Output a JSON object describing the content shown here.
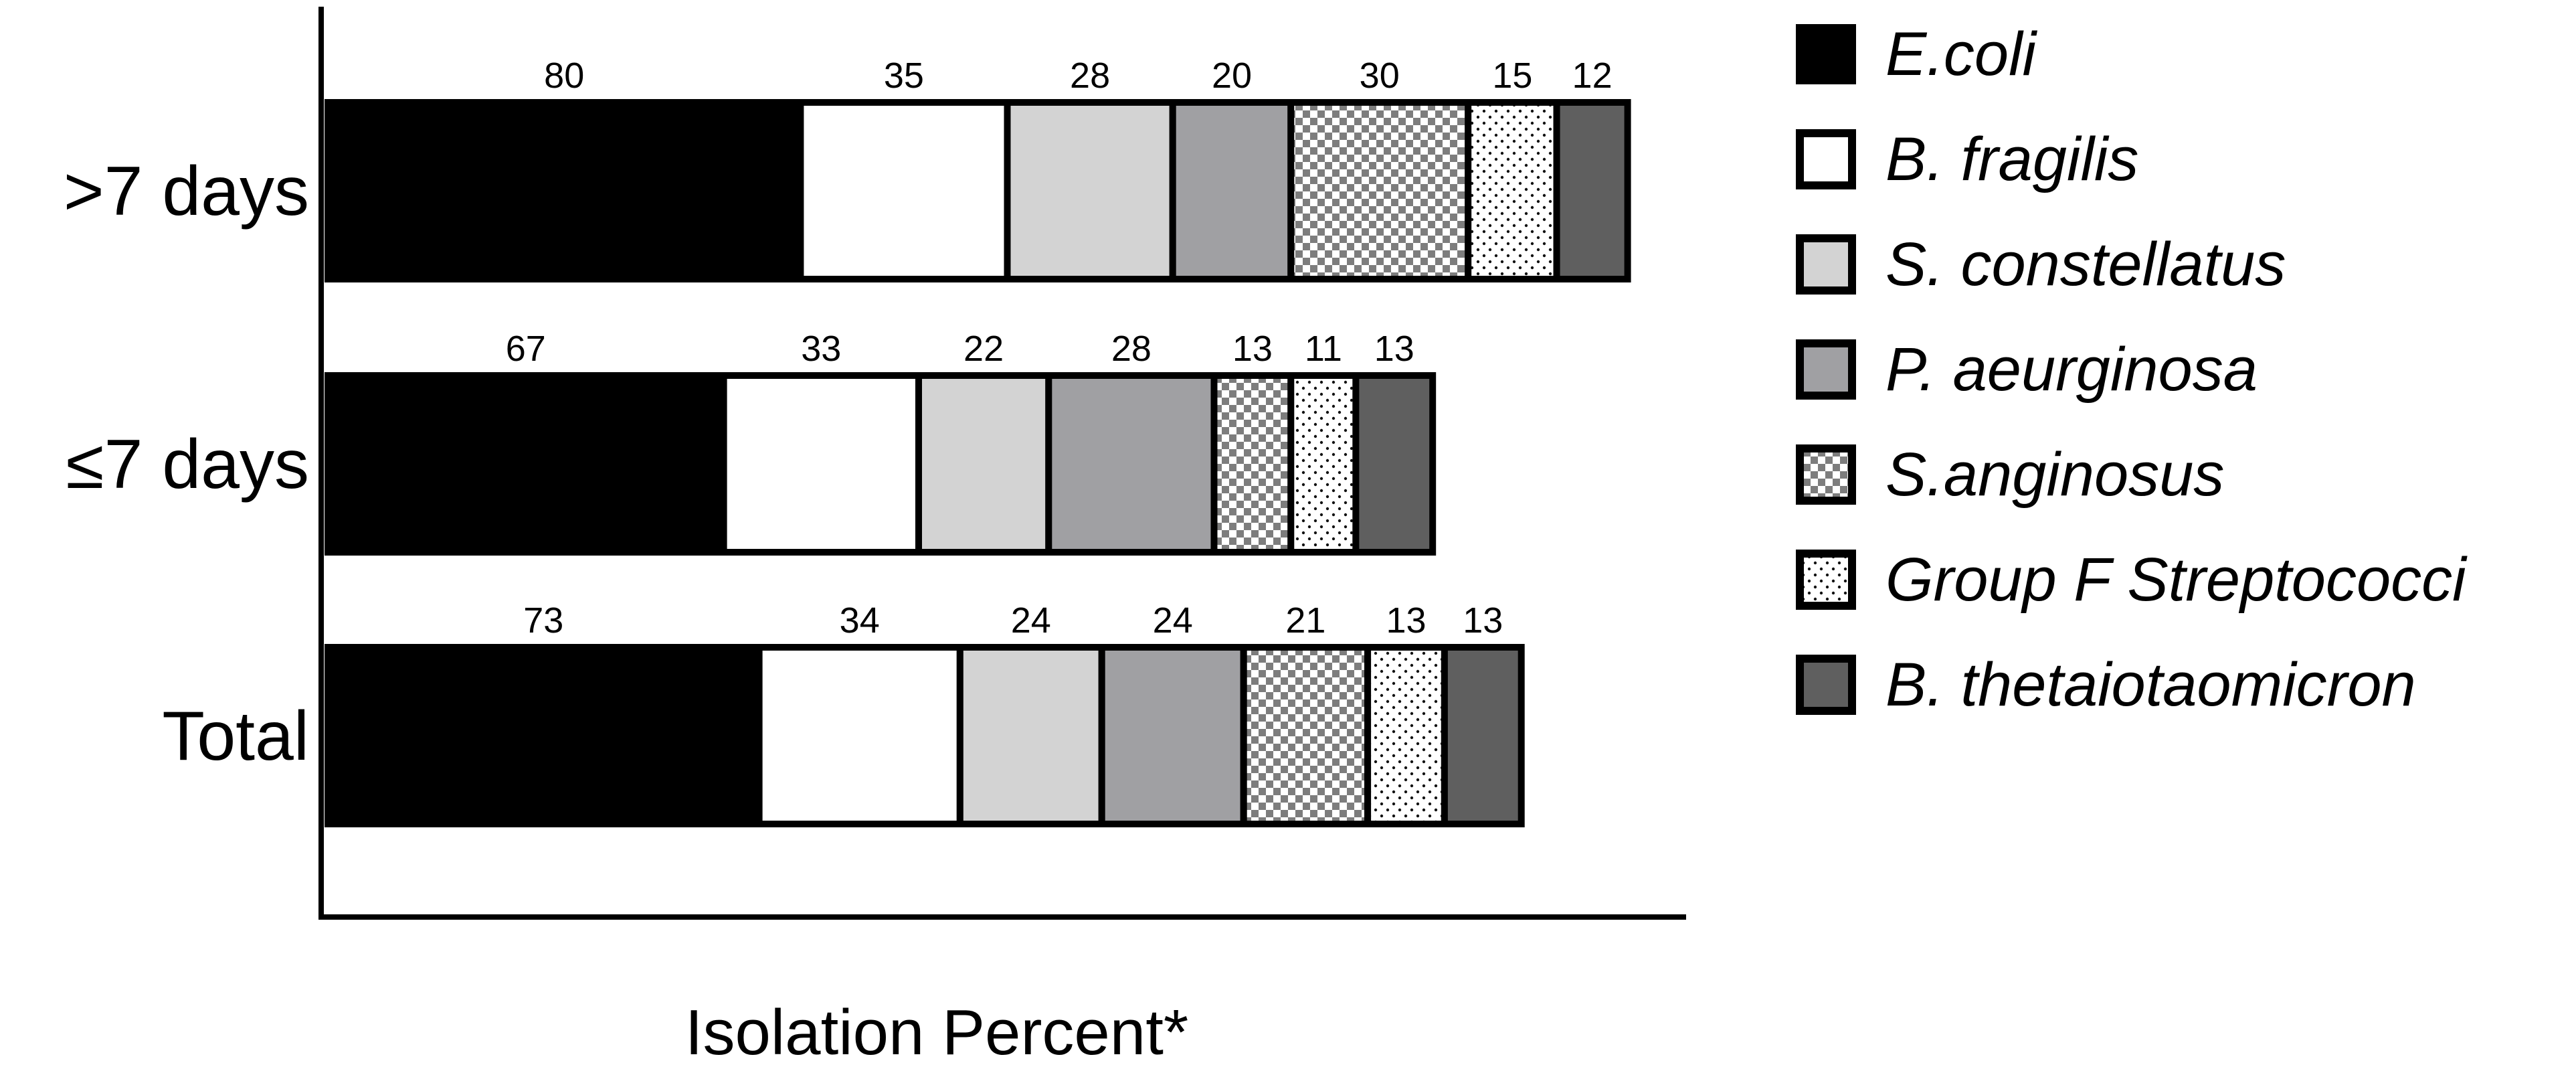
{
  "chart_data": {
    "type": "bar",
    "orientation": "horizontal",
    "stacked": true,
    "title": "",
    "xlabel": "Isolation Percent*",
    "ylabel": "",
    "categories": [
      ">7 days",
      "≤7 days",
      "Total"
    ],
    "series": [
      {
        "name": "E.coli",
        "values": [
          80,
          67,
          73
        ],
        "fill": "#000000",
        "pattern": "solid"
      },
      {
        "name": "B. fragilis",
        "values": [
          35,
          33,
          34
        ],
        "fill": "#ffffff",
        "pattern": "solid"
      },
      {
        "name": "S. constellatus",
        "values": [
          28,
          22,
          24
        ],
        "fill": "#d3d3d3",
        "pattern": "solid"
      },
      {
        "name": "P. aeurginosa",
        "values": [
          20,
          28,
          24
        ],
        "fill": "#a0a0a3",
        "pattern": "solid"
      },
      {
        "name": "S.anginosus",
        "values": [
          30,
          13,
          21
        ],
        "fill": "#888888",
        "pattern": "checker"
      },
      {
        "name": "Group F Streptococci",
        "values": [
          15,
          11,
          13
        ],
        "fill": "#ffffff",
        "pattern": "dots"
      },
      {
        "name": "B. thetaiotaomicron",
        "values": [
          12,
          13,
          13
        ],
        "fill": "#5f5f5f",
        "pattern": "solid"
      }
    ],
    "xlim": [
      0,
      255
    ],
    "grid": false,
    "legend_position": "right"
  }
}
